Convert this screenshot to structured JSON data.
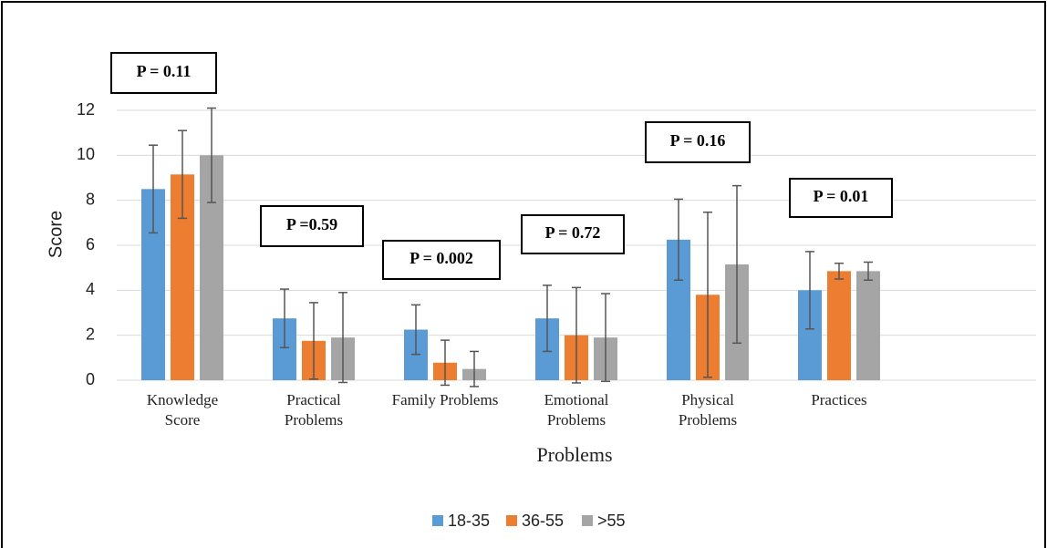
{
  "chart_data": {
    "type": "bar",
    "y_label": "Score",
    "x_label": "Problems",
    "categories": [
      "Knowledge Score",
      "Practical Problems",
      "Family Problems",
      "Emotional Problems",
      "Physical Problems",
      "Practices",
      null
    ],
    "series": [
      {
        "name": "18-35",
        "color": "#5b9bd5",
        "values": [
          8.5,
          2.75,
          2.25,
          2.75,
          6.25,
          4.0,
          null
        ],
        "errors": [
          1.95,
          1.3,
          1.1,
          1.47,
          1.8,
          1.72,
          null
        ]
      },
      {
        "name": "36-55",
        "color": "#ed7d31",
        "values": [
          9.15,
          1.75,
          0.78,
          2.0,
          3.8,
          4.85,
          null
        ],
        "errors": [
          1.95,
          1.7,
          1.0,
          2.12,
          3.67,
          0.35,
          null
        ]
      },
      {
        "name": ">55",
        "color": "#a5a5a5",
        "values": [
          10.0,
          1.9,
          0.5,
          1.9,
          5.15,
          4.85,
          null
        ],
        "errors": [
          2.1,
          2.0,
          0.78,
          1.95,
          3.5,
          0.4,
          null
        ]
      }
    ],
    "annotations": [
      "P = 0.11",
      "P =0.59",
      "P = 0.002",
      "P = 0.72",
      "P = 0.16",
      "P = 0.01"
    ],
    "ylim": [
      0,
      12
    ],
    "yticks": [
      0,
      2,
      4,
      6,
      8,
      10,
      12
    ],
    "grid": true,
    "legend": "bottom"
  }
}
